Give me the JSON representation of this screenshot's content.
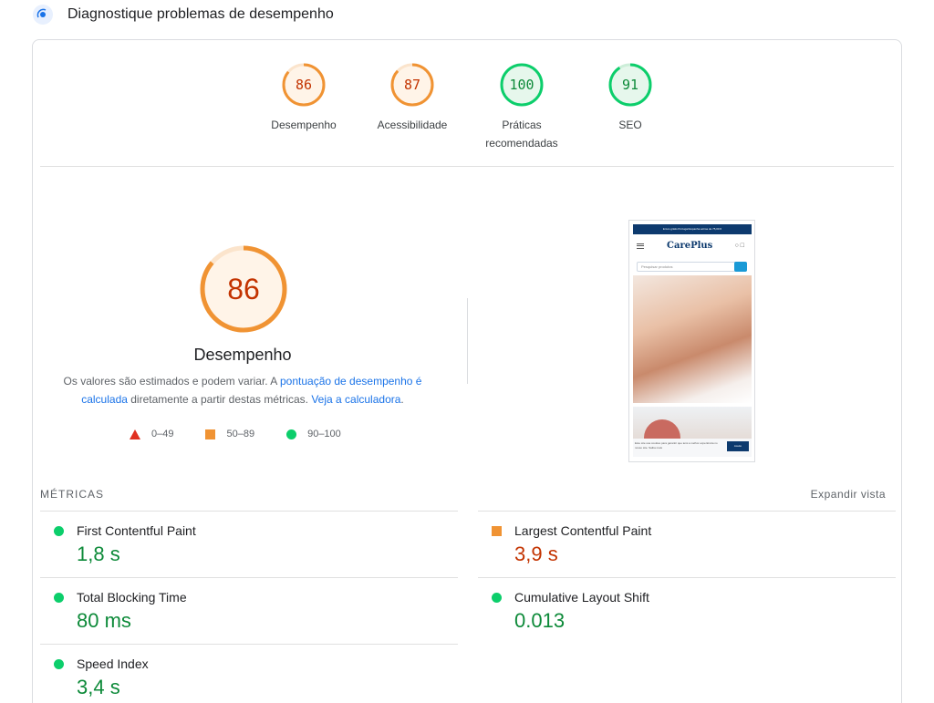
{
  "header": {
    "title": "Diagnostique problemas de desempenho"
  },
  "categories": [
    {
      "score": "86",
      "label": "Desempenho",
      "status": "average"
    },
    {
      "score": "87",
      "label": "Acessibilidade",
      "status": "average"
    },
    {
      "score": "100",
      "label": "Práticas recomendadas",
      "status": "pass"
    },
    {
      "score": "91",
      "label": "SEO",
      "status": "pass"
    }
  ],
  "performance": {
    "score": "86",
    "label": "Desempenho",
    "explain_prefix": "Os valores são estimados e podem variar. A ",
    "explain_link1": "pontuação de desempenho é calculada",
    "explain_mid": " diretamente a partir destas métricas. ",
    "explain_link2": "Veja a calculadora",
    "explain_suffix": "."
  },
  "legend": [
    {
      "range": "0–49",
      "shape": "triangle",
      "color": "#e03020"
    },
    {
      "range": "50–89",
      "shape": "square",
      "color": "#f09333"
    },
    {
      "range": "90–100",
      "shape": "circle",
      "color": "#0cce6b"
    }
  ],
  "screenshot": {
    "topbar": "Envio grátis Portugal Espanha acima de 75,00 €",
    "logo": "CarePlus",
    "search_placeholder": "Pesquisar produtos",
    "cookie_text": "Este site usa cookies para garantir que terá a melhor experiência no nosso site. Saiba mais",
    "cookie_button": "Aceito"
  },
  "metrics": {
    "title": "MÉTRICAS",
    "expand": "Expandir vista",
    "items": [
      {
        "name": "First Contentful Paint",
        "value": "1,8 s",
        "status": "pass"
      },
      {
        "name": "Largest Contentful Paint",
        "value": "3,9 s",
        "status": "average"
      },
      {
        "name": "Total Blocking Time",
        "value": "80 ms",
        "status": "pass"
      },
      {
        "name": "Cumulative Layout Shift",
        "value": "0.013",
        "status": "pass"
      },
      {
        "name": "Speed Index",
        "value": "3,4 s",
        "status": "pass"
      }
    ]
  },
  "colors": {
    "pass": "#0cce6b",
    "pass_text": "#0d8a39",
    "average": "#f09333",
    "average_text": "#c33300",
    "link": "#1a73e8"
  }
}
